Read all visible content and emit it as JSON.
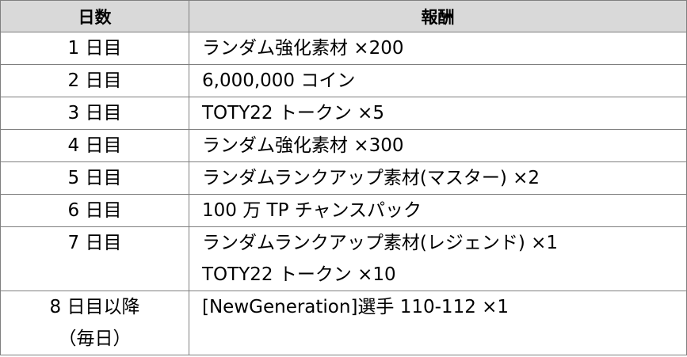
{
  "headers": {
    "day": "日数",
    "reward": "報酬"
  },
  "rows": [
    {
      "day_lines": [
        "1 日目"
      ],
      "reward_lines": [
        "ランダム強化素材 ×200"
      ]
    },
    {
      "day_lines": [
        "2 日目"
      ],
      "reward_lines": [
        "6,000,000 コイン"
      ]
    },
    {
      "day_lines": [
        "3 日目"
      ],
      "reward_lines": [
        "TOTY22 トークン ×5"
      ]
    },
    {
      "day_lines": [
        "4 日目"
      ],
      "reward_lines": [
        "ランダム強化素材 ×300"
      ]
    },
    {
      "day_lines": [
        "5 日目"
      ],
      "reward_lines": [
        "ランダムランクアップ素材(マスター) ×2"
      ]
    },
    {
      "day_lines": [
        "6 日目"
      ],
      "reward_lines": [
        "100 万 TP チャンスパック"
      ]
    },
    {
      "day_lines": [
        "7 日目"
      ],
      "reward_lines": [
        "ランダムランクアップ素材(レジェンド) ×1",
        "TOTY22 トークン ×10"
      ]
    },
    {
      "day_lines": [
        "8 日目以降",
        "（毎日）"
      ],
      "reward_lines": [
        "[NewGeneration]選手 110-112 ×1"
      ]
    }
  ]
}
